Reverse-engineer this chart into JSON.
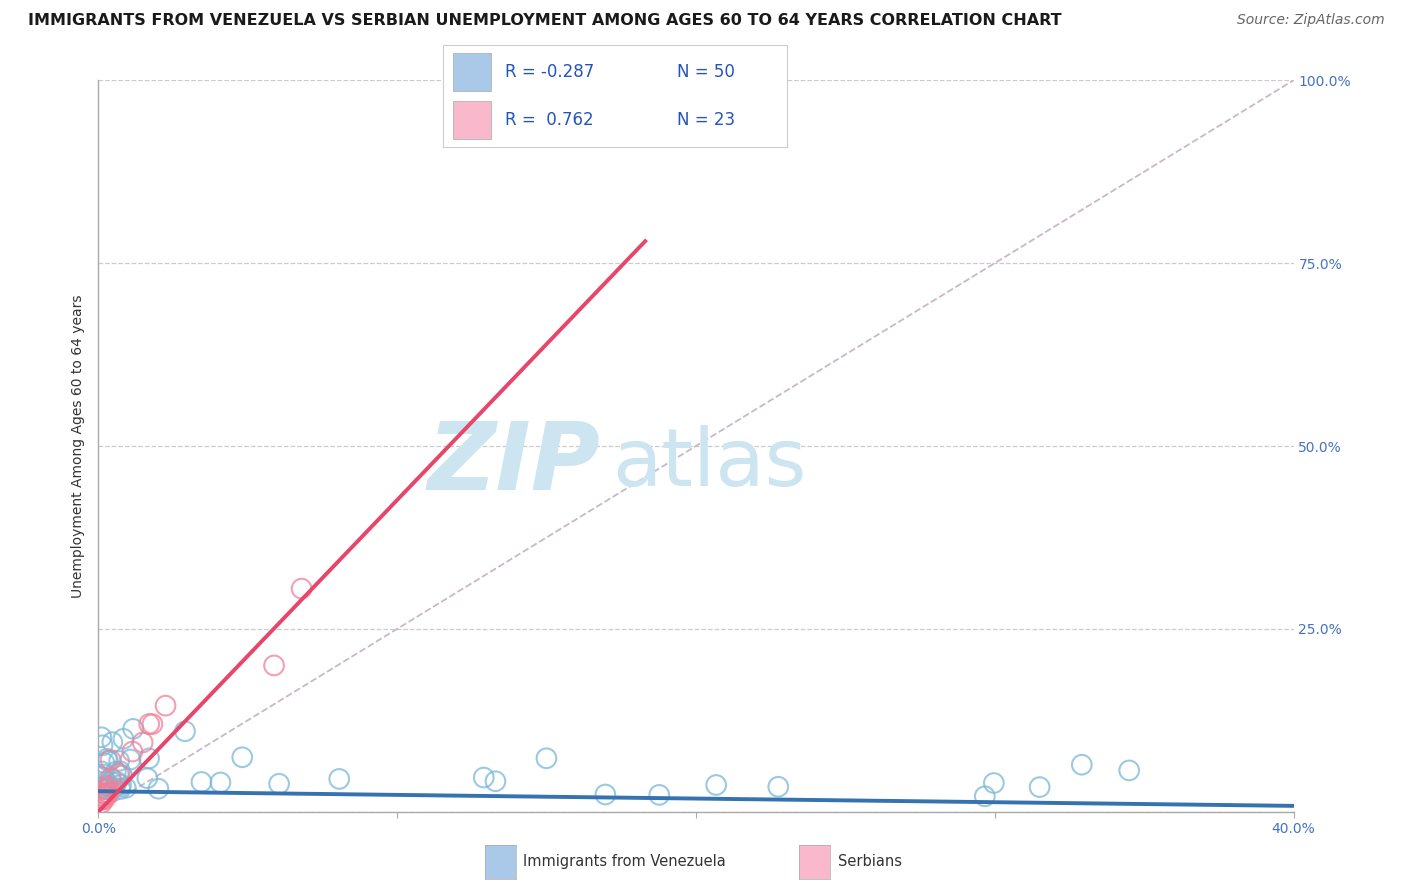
{
  "title": "IMMIGRANTS FROM VENEZUELA VS SERBIAN UNEMPLOYMENT AMONG AGES 60 TO 64 YEARS CORRELATION CHART",
  "source": "Source: ZipAtlas.com",
  "ylabel": "Unemployment Among Ages 60 to 64 years",
  "xlim": [
    0.0,
    0.4
  ],
  "ylim": [
    0.0,
    1.0
  ],
  "ytick_positions": [
    0.0,
    0.25,
    0.5,
    0.75,
    1.0
  ],
  "ytick_labels": [
    "",
    "25.0%",
    "50.0%",
    "75.0%",
    "100.0%"
  ],
  "background_color": "#ffffff",
  "grid_color": "#cccccc",
  "watermark_text1": "ZIP",
  "watermark_text2": "atlas",
  "watermark_color": "#cce5f0",
  "legend_color1": "#aac9e8",
  "legend_color2": "#f9b8cb",
  "dot_color_venezuela": "#7ab8d9",
  "dot_color_serbian": "#f08098",
  "reg_color_venezuela": "#3472b0",
  "reg_color_serbian": "#e8456a",
  "ref_line_color": "#c8b8c8",
  "title_fontsize": 11.5,
  "axis_label_fontsize": 10,
  "tick_fontsize": 10,
  "source_fontsize": 10,
  "legend_fontsize": 12,
  "right_tick_color": "#4472c4",
  "xtick_color": "#4472c4"
}
